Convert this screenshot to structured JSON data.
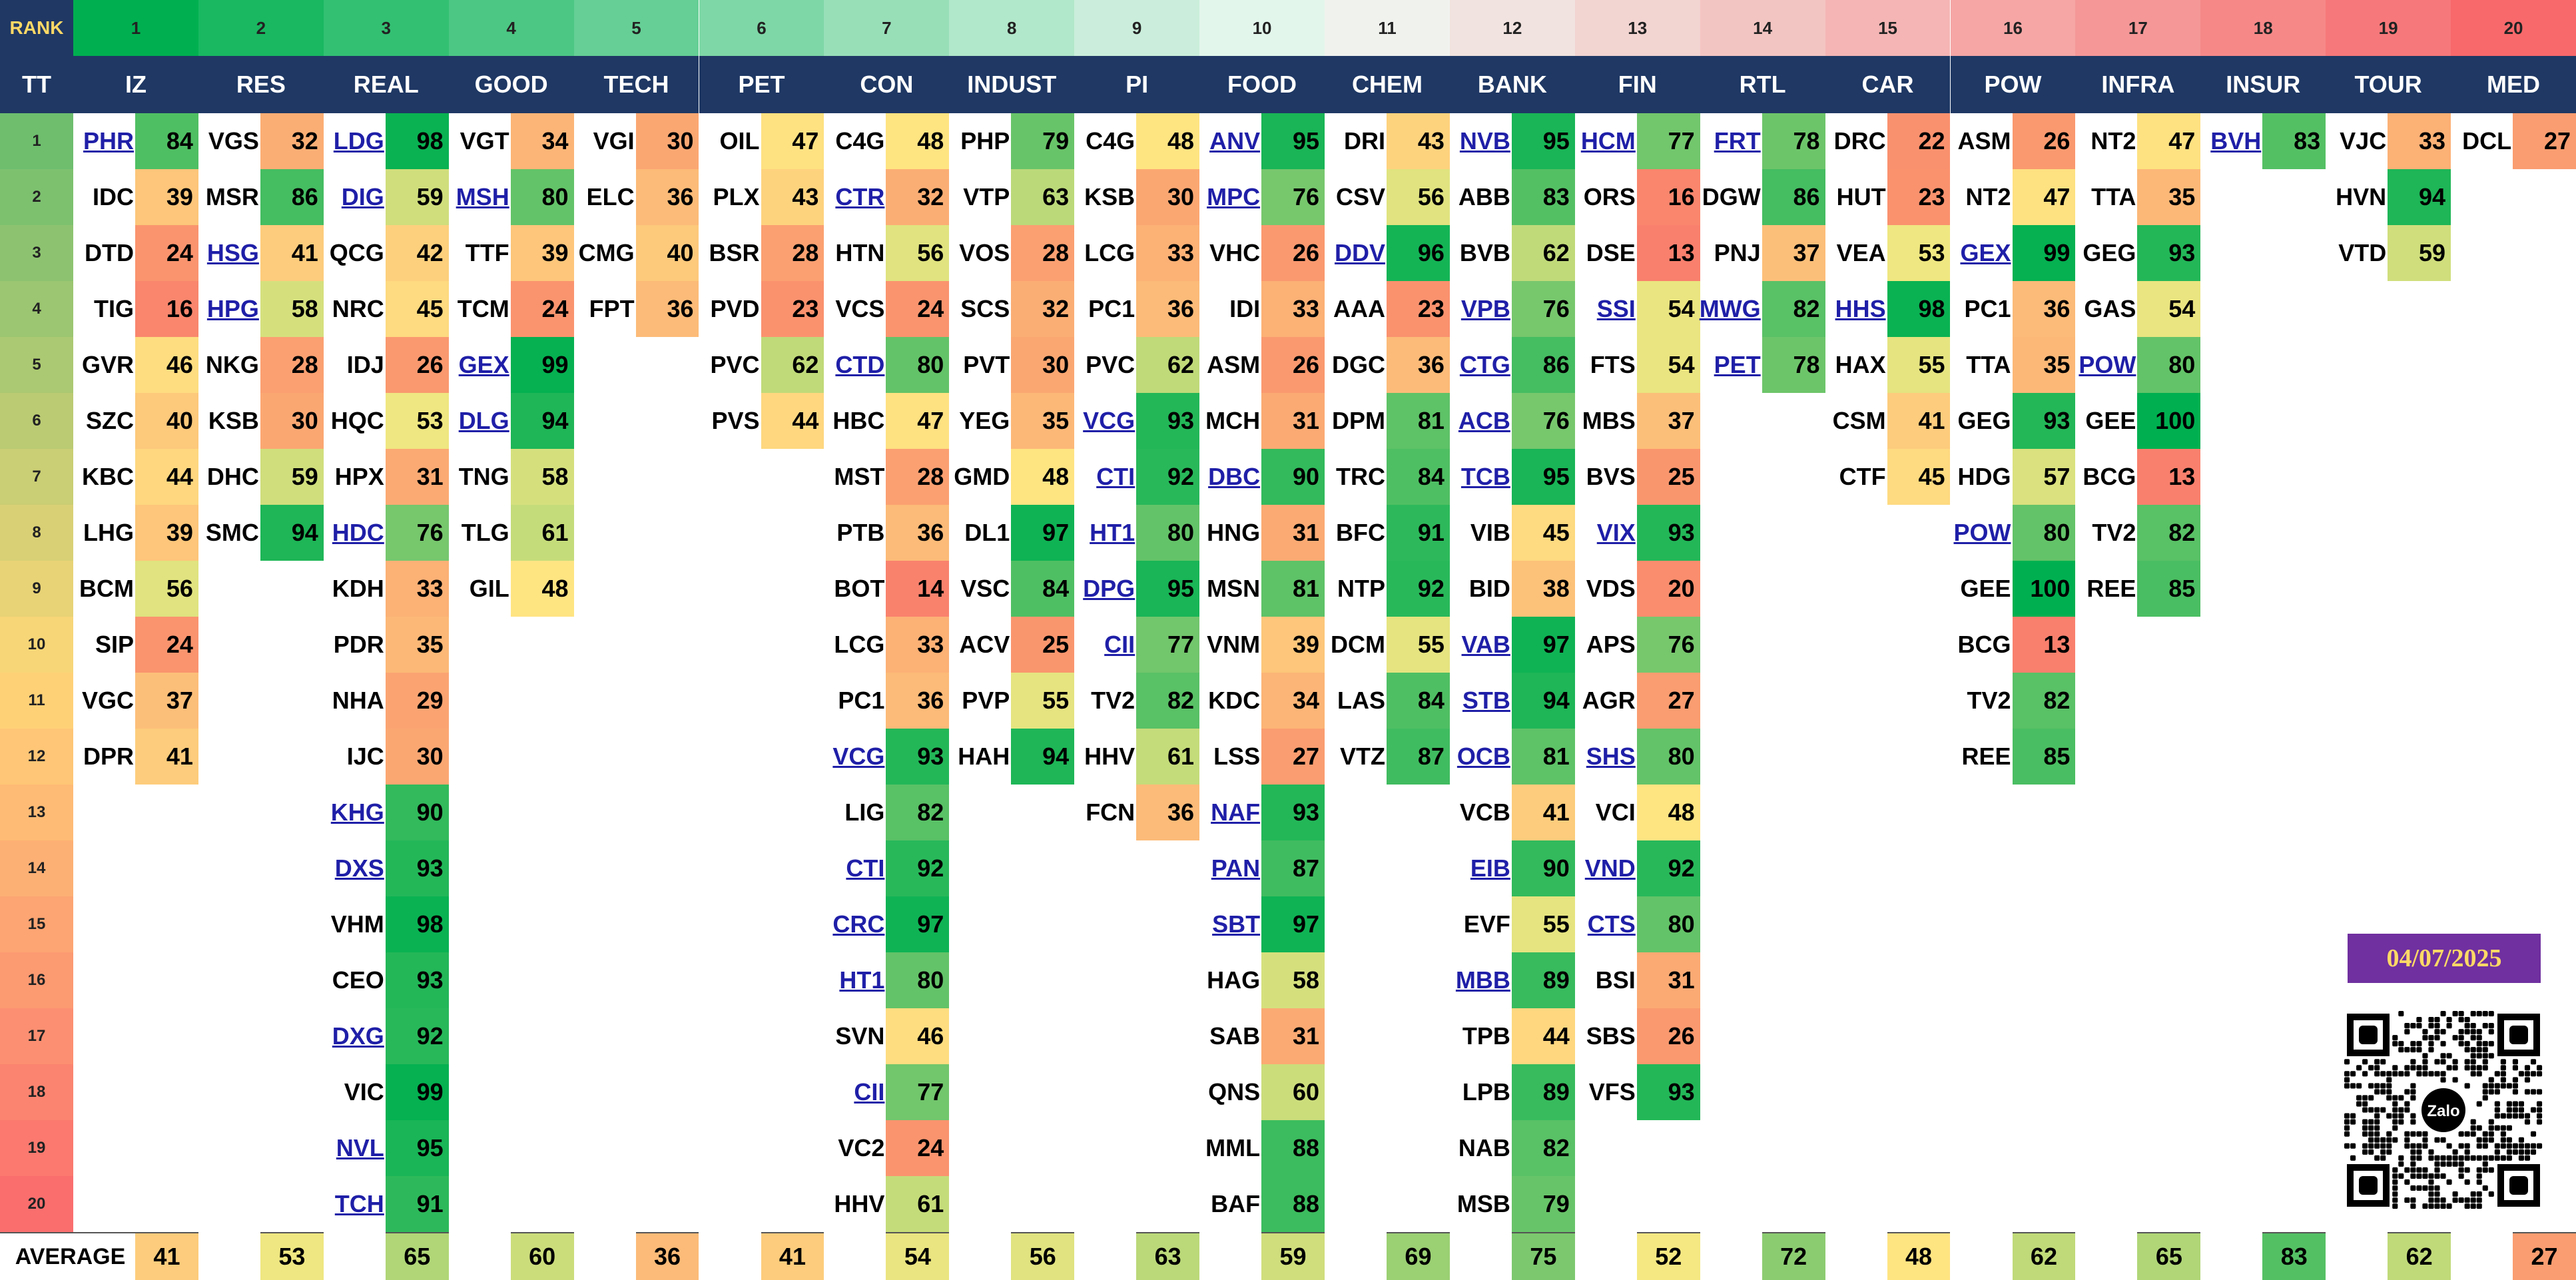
{
  "sheet": {
    "rank_label": "RANK",
    "tt_label": "TT",
    "average_label": "AVERAGE",
    "date": "04/07/2025",
    "qr_label": "Zalo",
    "ranks": [
      "1",
      "2",
      "3",
      "4",
      "5",
      "6",
      "7",
      "8",
      "9",
      "10",
      "11",
      "12",
      "13",
      "14",
      "15",
      "16",
      "17",
      "18",
      "19",
      "20"
    ],
    "row_numbers": [
      "1",
      "2",
      "3",
      "4",
      "5",
      "6",
      "7",
      "8",
      "9",
      "10",
      "11",
      "12",
      "13",
      "14",
      "15",
      "16",
      "17",
      "18",
      "19",
      "20"
    ],
    "colors": {
      "header_bg": "#1f3864",
      "header_text": "#ffffff",
      "rank_label_text": "#ffd966",
      "link_text": "#1f1fa8",
      "date_bg": "#7030a0",
      "date_text": "#ffd966"
    },
    "sectors": [
      {
        "name": "IZ",
        "avg": "41",
        "items": [
          {
            "t": "PHR",
            "s": "84",
            "link": true
          },
          {
            "t": "IDC",
            "s": "39"
          },
          {
            "t": "DTD",
            "s": "24"
          },
          {
            "t": "TIG",
            "s": "16"
          },
          {
            "t": "GVR",
            "s": "46"
          },
          {
            "t": "SZC",
            "s": "40"
          },
          {
            "t": "KBC",
            "s": "44"
          },
          {
            "t": "LHG",
            "s": "39"
          },
          {
            "t": "BCM",
            "s": "56"
          },
          {
            "t": "SIP",
            "s": "24"
          },
          {
            "t": "VGC",
            "s": "37"
          },
          {
            "t": "DPR",
            "s": "41"
          }
        ]
      },
      {
        "name": "RES",
        "avg": "53",
        "items": [
          {
            "t": "VGS",
            "s": "32"
          },
          {
            "t": "MSR",
            "s": "86"
          },
          {
            "t": "HSG",
            "s": "41",
            "link": true
          },
          {
            "t": "HPG",
            "s": "58",
            "link": true
          },
          {
            "t": "NKG",
            "s": "28"
          },
          {
            "t": "KSB",
            "s": "30"
          },
          {
            "t": "DHC",
            "s": "59"
          },
          {
            "t": "SMC",
            "s": "94"
          }
        ]
      },
      {
        "name": "REAL",
        "avg": "65",
        "items": [
          {
            "t": "LDG",
            "s": "98",
            "link": true
          },
          {
            "t": "DIG",
            "s": "59",
            "link": true
          },
          {
            "t": "QCG",
            "s": "42"
          },
          {
            "t": "NRC",
            "s": "45"
          },
          {
            "t": "IDJ",
            "s": "26"
          },
          {
            "t": "HQC",
            "s": "53"
          },
          {
            "t": "HPX",
            "s": "31"
          },
          {
            "t": "HDC",
            "s": "76",
            "link": true
          },
          {
            "t": "KDH",
            "s": "33"
          },
          {
            "t": "PDR",
            "s": "35"
          },
          {
            "t": "NHA",
            "s": "29"
          },
          {
            "t": "IJC",
            "s": "30"
          },
          {
            "t": "KHG",
            "s": "90",
            "link": true
          },
          {
            "t": "DXS",
            "s": "93",
            "link": true
          },
          {
            "t": "VHM",
            "s": "98"
          },
          {
            "t": "CEO",
            "s": "93"
          },
          {
            "t": "DXG",
            "s": "92",
            "link": true
          },
          {
            "t": "VIC",
            "s": "99"
          },
          {
            "t": "NVL",
            "s": "95",
            "link": true
          },
          {
            "t": "TCH",
            "s": "91",
            "link": true
          }
        ]
      },
      {
        "name": "GOOD",
        "avg": "60",
        "items": [
          {
            "t": "VGT",
            "s": "34"
          },
          {
            "t": "MSH",
            "s": "80",
            "link": true
          },
          {
            "t": "TTF",
            "s": "39"
          },
          {
            "t": "TCM",
            "s": "24"
          },
          {
            "t": "GEX",
            "s": "99",
            "link": true
          },
          {
            "t": "DLG",
            "s": "94",
            "link": true
          },
          {
            "t": "TNG",
            "s": "58"
          },
          {
            "t": "TLG",
            "s": "61"
          },
          {
            "t": "GIL",
            "s": "48"
          }
        ]
      },
      {
        "name": "TECH",
        "avg": "36",
        "items": [
          {
            "t": "VGI",
            "s": "30"
          },
          {
            "t": "ELC",
            "s": "36"
          },
          {
            "t": "CMG",
            "s": "40"
          },
          {
            "t": "FPT",
            "s": "36"
          }
        ]
      },
      {
        "name": "PET",
        "avg": "41",
        "items": [
          {
            "t": "OIL",
            "s": "47"
          },
          {
            "t": "PLX",
            "s": "43"
          },
          {
            "t": "BSR",
            "s": "28"
          },
          {
            "t": "PVD",
            "s": "23"
          },
          {
            "t": "PVC",
            "s": "62"
          },
          {
            "t": "PVS",
            "s": "44"
          }
        ]
      },
      {
        "name": "CON",
        "avg": "54",
        "items": [
          {
            "t": "C4G",
            "s": "48"
          },
          {
            "t": "CTR",
            "s": "32",
            "link": true
          },
          {
            "t": "HTN",
            "s": "56"
          },
          {
            "t": "VCS",
            "s": "24"
          },
          {
            "t": "CTD",
            "s": "80",
            "link": true
          },
          {
            "t": "HBC",
            "s": "47"
          },
          {
            "t": "MST",
            "s": "28"
          },
          {
            "t": "PTB",
            "s": "36"
          },
          {
            "t": "BOT",
            "s": "14"
          },
          {
            "t": "LCG",
            "s": "33"
          },
          {
            "t": "PC1",
            "s": "36"
          },
          {
            "t": "VCG",
            "s": "93",
            "link": true
          },
          {
            "t": "LIG",
            "s": "82"
          },
          {
            "t": "CTI",
            "s": "92",
            "link": true
          },
          {
            "t": "CRC",
            "s": "97",
            "link": true
          },
          {
            "t": "HT1",
            "s": "80",
            "link": true
          },
          {
            "t": "SVN",
            "s": "46"
          },
          {
            "t": "CII",
            "s": "77",
            "link": true
          },
          {
            "t": "VC2",
            "s": "24"
          },
          {
            "t": "HHV",
            "s": "61"
          }
        ]
      },
      {
        "name": "INDUST",
        "avg": "56",
        "items": [
          {
            "t": "PHP",
            "s": "79"
          },
          {
            "t": "VTP",
            "s": "63"
          },
          {
            "t": "VOS",
            "s": "28"
          },
          {
            "t": "SCS",
            "s": "32"
          },
          {
            "t": "PVT",
            "s": "30"
          },
          {
            "t": "YEG",
            "s": "35"
          },
          {
            "t": "GMD",
            "s": "48"
          },
          {
            "t": "DL1",
            "s": "97"
          },
          {
            "t": "VSC",
            "s": "84"
          },
          {
            "t": "ACV",
            "s": "25"
          },
          {
            "t": "PVP",
            "s": "55"
          },
          {
            "t": "HAH",
            "s": "94"
          }
        ]
      },
      {
        "name": "PI",
        "avg": "63",
        "items": [
          {
            "t": "C4G",
            "s": "48"
          },
          {
            "t": "KSB",
            "s": "30"
          },
          {
            "t": "LCG",
            "s": "33"
          },
          {
            "t": "PC1",
            "s": "36"
          },
          {
            "t": "PVC",
            "s": "62"
          },
          {
            "t": "VCG",
            "s": "93",
            "link": true
          },
          {
            "t": "CTI",
            "s": "92",
            "link": true
          },
          {
            "t": "HT1",
            "s": "80",
            "link": true
          },
          {
            "t": "DPG",
            "s": "95",
            "link": true
          },
          {
            "t": "CII",
            "s": "77",
            "link": true
          },
          {
            "t": "TV2",
            "s": "82"
          },
          {
            "t": "HHV",
            "s": "61"
          },
          {
            "t": "FCN",
            "s": "36"
          }
        ]
      },
      {
        "name": "FOOD",
        "avg": "59",
        "items": [
          {
            "t": "ANV",
            "s": "95",
            "link": true
          },
          {
            "t": "MPC",
            "s": "76",
            "link": true
          },
          {
            "t": "VHC",
            "s": "26"
          },
          {
            "t": "IDI",
            "s": "33"
          },
          {
            "t": "ASM",
            "s": "26"
          },
          {
            "t": "MCH",
            "s": "31"
          },
          {
            "t": "DBC",
            "s": "90",
            "link": true
          },
          {
            "t": "HNG",
            "s": "31"
          },
          {
            "t": "MSN",
            "s": "81"
          },
          {
            "t": "VNM",
            "s": "39"
          },
          {
            "t": "KDC",
            "s": "34"
          },
          {
            "t": "LSS",
            "s": "27"
          },
          {
            "t": "NAF",
            "s": "93",
            "link": true
          },
          {
            "t": "PAN",
            "s": "87",
            "link": true
          },
          {
            "t": "SBT",
            "s": "97",
            "link": true
          },
          {
            "t": "HAG",
            "s": "58"
          },
          {
            "t": "SAB",
            "s": "31"
          },
          {
            "t": "QNS",
            "s": "60"
          },
          {
            "t": "MML",
            "s": "88"
          },
          {
            "t": "BAF",
            "s": "88"
          }
        ]
      },
      {
        "name": "CHEM",
        "avg": "69",
        "items": [
          {
            "t": "DRI",
            "s": "43"
          },
          {
            "t": "CSV",
            "s": "56"
          },
          {
            "t": "DDV",
            "s": "96",
            "link": true
          },
          {
            "t": "AAA",
            "s": "23"
          },
          {
            "t": "DGC",
            "s": "36"
          },
          {
            "t": "DPM",
            "s": "81"
          },
          {
            "t": "TRC",
            "s": "84"
          },
          {
            "t": "BFC",
            "s": "91"
          },
          {
            "t": "NTP",
            "s": "92"
          },
          {
            "t": "DCM",
            "s": "55"
          },
          {
            "t": "LAS",
            "s": "84"
          },
          {
            "t": "VTZ",
            "s": "87"
          }
        ]
      },
      {
        "name": "BANK",
        "avg": "75",
        "items": [
          {
            "t": "NVB",
            "s": "95",
            "link": true
          },
          {
            "t": "ABB",
            "s": "83"
          },
          {
            "t": "BVB",
            "s": "62"
          },
          {
            "t": "VPB",
            "s": "76",
            "link": true
          },
          {
            "t": "CTG",
            "s": "86",
            "link": true
          },
          {
            "t": "ACB",
            "s": "76",
            "link": true
          },
          {
            "t": "TCB",
            "s": "95",
            "link": true
          },
          {
            "t": "VIB",
            "s": "45"
          },
          {
            "t": "BID",
            "s": "38"
          },
          {
            "t": "VAB",
            "s": "97",
            "link": true
          },
          {
            "t": "STB",
            "s": "94",
            "link": true
          },
          {
            "t": "OCB",
            "s": "81",
            "link": true
          },
          {
            "t": "VCB",
            "s": "41"
          },
          {
            "t": "EIB",
            "s": "90",
            "link": true
          },
          {
            "t": "EVF",
            "s": "55"
          },
          {
            "t": "MBB",
            "s": "89",
            "link": true
          },
          {
            "t": "TPB",
            "s": "44"
          },
          {
            "t": "LPB",
            "s": "89"
          },
          {
            "t": "NAB",
            "s": "82"
          },
          {
            "t": "MSB",
            "s": "79"
          }
        ]
      },
      {
        "name": "FIN",
        "avg": "52",
        "items": [
          {
            "t": "HCM",
            "s": "77",
            "link": true
          },
          {
            "t": "ORS",
            "s": "16"
          },
          {
            "t": "DSE",
            "s": "13"
          },
          {
            "t": "SSI",
            "s": "54",
            "link": true
          },
          {
            "t": "FTS",
            "s": "54"
          },
          {
            "t": "MBS",
            "s": "37"
          },
          {
            "t": "BVS",
            "s": "25"
          },
          {
            "t": "VIX",
            "s": "93",
            "link": true
          },
          {
            "t": "VDS",
            "s": "20"
          },
          {
            "t": "APS",
            "s": "76"
          },
          {
            "t": "AGR",
            "s": "27"
          },
          {
            "t": "SHS",
            "s": "80",
            "link": true
          },
          {
            "t": "VCI",
            "s": "48"
          },
          {
            "t": "VND",
            "s": "92",
            "link": true
          },
          {
            "t": "CTS",
            "s": "80",
            "link": true
          },
          {
            "t": "BSI",
            "s": "31"
          },
          {
            "t": "SBS",
            "s": "26"
          },
          {
            "t": "VFS",
            "s": "93"
          }
        ]
      },
      {
        "name": "RTL",
        "avg": "72",
        "items": [
          {
            "t": "FRT",
            "s": "78",
            "link": true
          },
          {
            "t": "DGW",
            "s": "86"
          },
          {
            "t": "PNJ",
            "s": "37"
          },
          {
            "t": "MWG",
            "s": "82",
            "link": true
          },
          {
            "t": "PET",
            "s": "78",
            "link": true
          }
        ]
      },
      {
        "name": "CAR",
        "avg": "48",
        "items": [
          {
            "t": "DRC",
            "s": "22"
          },
          {
            "t": "HUT",
            "s": "23"
          },
          {
            "t": "VEA",
            "s": "53"
          },
          {
            "t": "HHS",
            "s": "98",
            "link": true
          },
          {
            "t": "HAX",
            "s": "55"
          },
          {
            "t": "CSM",
            "s": "41"
          },
          {
            "t": "CTF",
            "s": "45"
          }
        ]
      },
      {
        "name": "POW",
        "avg": "62",
        "items": [
          {
            "t": "ASM",
            "s": "26"
          },
          {
            "t": "NT2",
            "s": "47"
          },
          {
            "t": "GEX",
            "s": "99",
            "link": true
          },
          {
            "t": "PC1",
            "s": "36"
          },
          {
            "t": "TTA",
            "s": "35"
          },
          {
            "t": "GEG",
            "s": "93"
          },
          {
            "t": "HDG",
            "s": "57"
          },
          {
            "t": "POW",
            "s": "80",
            "link": true
          },
          {
            "t": "GEE",
            "s": "100"
          },
          {
            "t": "BCG",
            "s": "13"
          },
          {
            "t": "TV2",
            "s": "82"
          },
          {
            "t": "REE",
            "s": "85"
          }
        ]
      },
      {
        "name": "INFRA",
        "avg": "65",
        "items": [
          {
            "t": "NT2",
            "s": "47"
          },
          {
            "t": "TTA",
            "s": "35"
          },
          {
            "t": "GEG",
            "s": "93"
          },
          {
            "t": "GAS",
            "s": "54"
          },
          {
            "t": "POW",
            "s": "80",
            "link": true
          },
          {
            "t": "GEE",
            "s": "100"
          },
          {
            "t": "BCG",
            "s": "13"
          },
          {
            "t": "TV2",
            "s": "82"
          },
          {
            "t": "REE",
            "s": "85"
          }
        ]
      },
      {
        "name": "INSUR",
        "avg": "83",
        "items": [
          {
            "t": "BVH",
            "s": "83",
            "link": true
          }
        ]
      },
      {
        "name": "TOUR",
        "avg": "62",
        "items": [
          {
            "t": "VJC",
            "s": "33"
          },
          {
            "t": "HVN",
            "s": "94"
          },
          {
            "t": "VTD",
            "s": "59"
          }
        ]
      },
      {
        "name": "MED",
        "avg": "27",
        "items": [
          {
            "t": "DCL",
            "s": "27"
          }
        ]
      }
    ]
  }
}
